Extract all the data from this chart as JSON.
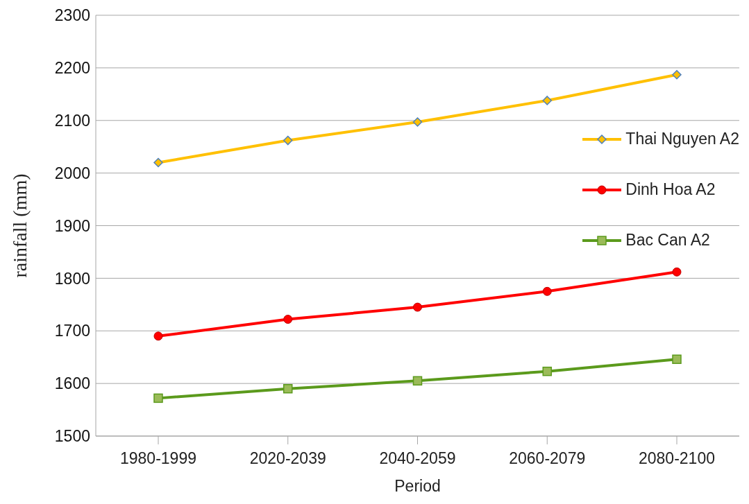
{
  "chart_data": {
    "type": "line",
    "xlabel": "Period",
    "ylabel": "rainfall (mm)",
    "categories": [
      "1980-1999",
      "2020-2039",
      "2040-2059",
      "2060-2079",
      "2080-2100"
    ],
    "series": [
      {
        "name": "Thai Nguyen A2",
        "color": "#ffc000",
        "marker": "diamond",
        "values": [
          2020,
          2062,
          2097,
          2138,
          2187
        ]
      },
      {
        "name": "Dinh Hoa A2",
        "color": "#ff0000",
        "marker": "circle",
        "values": [
          1690,
          1722,
          1745,
          1775,
          1812
        ]
      },
      {
        "name": "Bac Can A2",
        "color": "#5b9a1c",
        "marker": "square",
        "values": [
          1572,
          1590,
          1605,
          1623,
          1646
        ]
      }
    ],
    "ylim": [
      1500,
      2300
    ],
    "yticks": [
      1500,
      1600,
      1700,
      1800,
      1900,
      2000,
      2100,
      2200,
      2300
    ],
    "grid": "y",
    "legend": "right",
    "line_style": "solid"
  }
}
